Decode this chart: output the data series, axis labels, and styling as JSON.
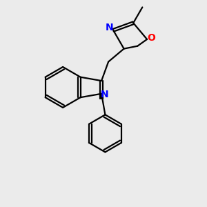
{
  "background_color": "#ebebeb",
  "bond_color": "#000000",
  "N_color": "#0000ff",
  "O_color": "#ff0000",
  "line_width": 1.6,
  "figsize": [
    3.0,
    3.0
  ],
  "dpi": 100,
  "xlim": [
    0,
    10
  ],
  "ylim": [
    0,
    10
  ]
}
